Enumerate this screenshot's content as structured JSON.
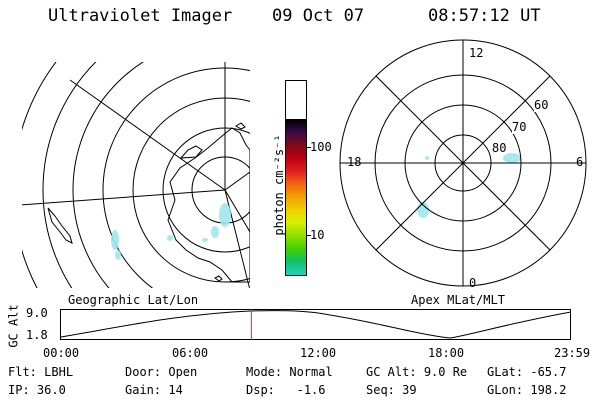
{
  "header": {
    "instrument": "Ultraviolet Imager",
    "date": "09 Oct 07",
    "time": "08:57:12 UT"
  },
  "left_panel": {
    "label": "Geographic Lat/Lon"
  },
  "colorbar": {
    "unit_label": "photon cm⁻²s⁻¹",
    "ticks": [
      "100",
      "10"
    ],
    "colors": [
      "#000000",
      "#3a0a4a",
      "#7a0a1a",
      "#b80010",
      "#e02020",
      "#f06010",
      "#f0a000",
      "#f0d000",
      "#d8f000",
      "#90e000",
      "#40d000",
      "#10c060",
      "#20d0c0",
      "#80e0e0",
      "#c0f0f0",
      "#e8f8f8"
    ]
  },
  "right_panel": {
    "label": "Apex MLat/MLT",
    "mlt_labels": [
      "12",
      "18",
      "6",
      "0"
    ],
    "lat_labels": [
      "60",
      "70",
      "80"
    ]
  },
  "altitude_plot": {
    "axis_label": "GC Alt",
    "y_ticks": [
      "9.0",
      "1.8"
    ],
    "x_ticks": [
      "00:00",
      "06:00",
      "12:00",
      "18:00",
      "23:59"
    ],
    "current_time_marker": "08:57"
  },
  "footer": {
    "row1": [
      {
        "label": "Flt:",
        "value": "LBHL"
      },
      {
        "label": "Door:",
        "value": "Open"
      },
      {
        "label": "Mode:",
        "value": "Normal"
      },
      {
        "label": "GC Alt:",
        "value": "9.0 Re"
      },
      {
        "label": "GLat:",
        "value": "-65.7"
      }
    ],
    "row2": [
      {
        "label": "IP:",
        "value": "36.0"
      },
      {
        "label": "Gain:",
        "value": "14"
      },
      {
        "label": "Dsp:",
        "value": "  -1.6"
      },
      {
        "label": "Seq:",
        "value": "39"
      },
      {
        "label": "GLon:",
        "value": "198.2"
      }
    ]
  },
  "colors": {
    "marker": "#e02020",
    "aurora": "#9fe6ee"
  }
}
